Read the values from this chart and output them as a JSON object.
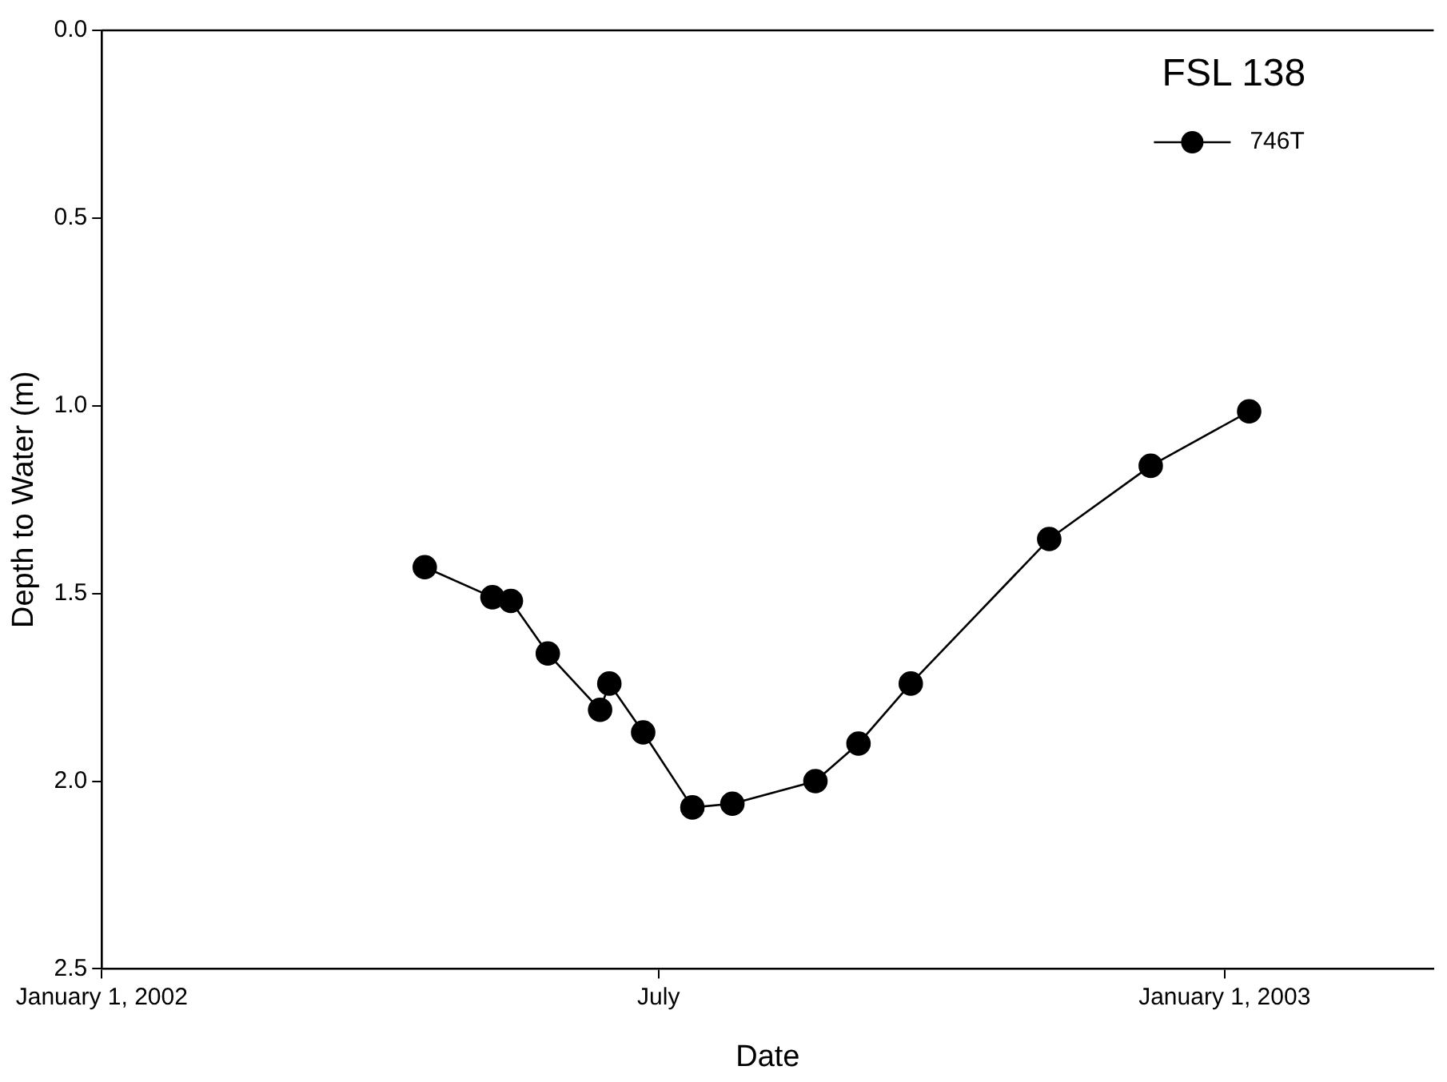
{
  "chart_data": {
    "type": "line",
    "xlabel": "Date",
    "ylabel": "Depth to Water (m)",
    "legend_title": "FSL 138",
    "x": [
      "2002-04-16",
      "2002-05-08",
      "2002-05-14",
      "2002-05-26",
      "2002-06-12",
      "2002-06-15",
      "2002-06-26",
      "2002-07-12",
      "2002-07-25",
      "2002-08-21",
      "2002-09-04",
      "2002-09-21",
      "2002-11-05",
      "2002-12-08",
      "2003-01-09"
    ],
    "series": [
      {
        "name": "746T",
        "color": "#000000",
        "values": [
          1.43,
          1.51,
          1.52,
          1.66,
          1.81,
          1.74,
          1.87,
          2.07,
          2.06,
          2.0,
          1.9,
          1.74,
          1.355,
          1.16,
          1.015
        ]
      }
    ],
    "xlim": [
      "2002-01-01",
      "2003-03-10"
    ],
    "xticks": [
      {
        "value": "2002-01-01",
        "label": "January 1, 2002"
      },
      {
        "value": "2002-07-01",
        "label": "July"
      },
      {
        "value": "2003-01-01",
        "label": "January 1, 2003"
      }
    ],
    "ylim": [
      2.5,
      0
    ],
    "yticks": [
      {
        "value": 0,
        "label": "0.0"
      },
      {
        "value": 0.5,
        "label": "0.5"
      },
      {
        "value": 1,
        "label": "1.0"
      },
      {
        "value": 1.5,
        "label": "1.5"
      },
      {
        "value": 2,
        "label": "2.0"
      },
      {
        "value": 2.5,
        "label": "2.5"
      }
    ],
    "grid": false,
    "legend": "top right",
    "marker": "circle",
    "line_style": "solid"
  }
}
